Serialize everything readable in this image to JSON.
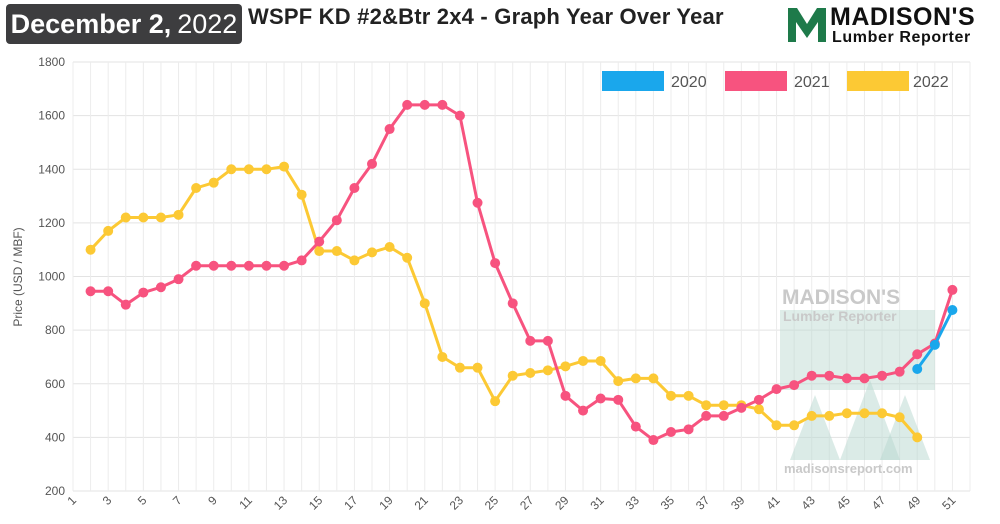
{
  "header": {
    "date_bold": "December 2,",
    "date_year": "2022",
    "title": "WSPF KD #2&Btr 2x4 - Graph Year Over Year"
  },
  "logo": {
    "line1": "MADISON'S",
    "line2": "Lumber Reporter",
    "icon": "madisons-m-icon"
  },
  "watermark": {
    "line1": "MADISON'S",
    "line2": "Lumber Reporter",
    "url": "madisonsreport.com"
  },
  "colors": {
    "2020": "#1aa7ec",
    "2021": "#f7537f",
    "2022": "#fcc934",
    "logo_green": "#1e7a4a",
    "watermark_green": "#b7d7cf"
  },
  "chart_data": {
    "type": "line",
    "title": "WSPF KD #2&Btr 2x4 - Graph Year Over Year",
    "xlabel": "",
    "ylabel": "Price (USD / MBF)",
    "xlim": [
      1,
      52
    ],
    "ylim": [
      200,
      1800
    ],
    "x_ticks": [
      1,
      3,
      5,
      7,
      9,
      11,
      13,
      15,
      17,
      19,
      21,
      23,
      25,
      27,
      29,
      31,
      33,
      35,
      37,
      39,
      41,
      43,
      45,
      47,
      49,
      51
    ],
    "y_ticks": [
      200,
      400,
      600,
      800,
      1000,
      1200,
      1400,
      1600,
      1800
    ],
    "grid": true,
    "legend": "top-right",
    "series": [
      {
        "name": "2020",
        "x": [
          49,
          50,
          51
        ],
        "y": [
          655,
          745,
          875
        ]
      },
      {
        "name": "2021",
        "x": [
          2,
          3,
          4,
          5,
          6,
          7,
          8,
          9,
          10,
          11,
          12,
          13,
          14,
          15,
          16,
          17,
          18,
          19,
          20,
          21,
          22,
          23,
          24,
          25,
          26,
          27,
          28,
          29,
          30,
          31,
          32,
          33,
          34,
          35,
          36,
          37,
          38,
          39,
          40,
          41,
          42,
          43,
          44,
          45,
          46,
          47,
          48,
          49,
          50,
          51
        ],
        "y": [
          945,
          945,
          895,
          940,
          960,
          990,
          1040,
          1040,
          1040,
          1040,
          1040,
          1040,
          1060,
          1130,
          1210,
          1330,
          1420,
          1550,
          1640,
          1640,
          1640,
          1600,
          1275,
          1050,
          900,
          760,
          760,
          555,
          500,
          545,
          540,
          440,
          390,
          420,
          430,
          480,
          480,
          510,
          540,
          580,
          595,
          630,
          630,
          620,
          620,
          630,
          645,
          710,
          750,
          950
        ]
      },
      {
        "name": "2022",
        "x": [
          2,
          3,
          4,
          5,
          6,
          7,
          8,
          9,
          10,
          11,
          12,
          13,
          14,
          15,
          16,
          17,
          18,
          19,
          20,
          21,
          22,
          23,
          24,
          25,
          26,
          27,
          28,
          29,
          30,
          31,
          32,
          33,
          34,
          35,
          36,
          37,
          38,
          39,
          40,
          41,
          42,
          43,
          44,
          45,
          46,
          47,
          48,
          49
        ],
        "y": [
          1100,
          1170,
          1220,
          1220,
          1220,
          1230,
          1330,
          1350,
          1400,
          1400,
          1400,
          1410,
          1305,
          1095,
          1095,
          1060,
          1090,
          1110,
          1070,
          900,
          700,
          660,
          660,
          535,
          630,
          640,
          650,
          665,
          685,
          685,
          610,
          620,
          620,
          555,
          555,
          520,
          520,
          520,
          505,
          445,
          445,
          480,
          480,
          490,
          490,
          490,
          475,
          400
        ]
      }
    ]
  }
}
